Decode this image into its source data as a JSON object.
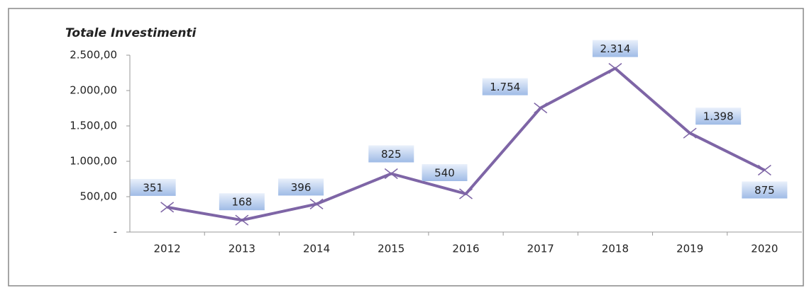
{
  "chart_data": {
    "type": "line",
    "title": "Totale Investimenti",
    "categories": [
      "2012",
      "2013",
      "2014",
      "2015",
      "2016",
      "2017",
      "2018",
      "2019",
      "2020"
    ],
    "series": [
      {
        "name": "Totale Investimenti",
        "color": "#7e65a6",
        "values": [
          351,
          168,
          396,
          825,
          540,
          1754,
          2314,
          1398,
          875
        ],
        "value_labels": [
          "351",
          "168",
          "396",
          "825",
          "540",
          "1.754",
          "2.314",
          "1.398",
          "875"
        ]
      }
    ],
    "ylim": [
      0,
      2500
    ],
    "yticks": [
      {
        "value": 0,
        "label": "-"
      },
      {
        "value": 500,
        "label": "500,00"
      },
      {
        "value": 1000,
        "label": "1.000,00"
      },
      {
        "value": 1500,
        "label": "1.500,00"
      },
      {
        "value": 2000,
        "label": "2.000,00"
      },
      {
        "value": 2500,
        "label": "2.500,00"
      }
    ],
    "grid": false
  }
}
